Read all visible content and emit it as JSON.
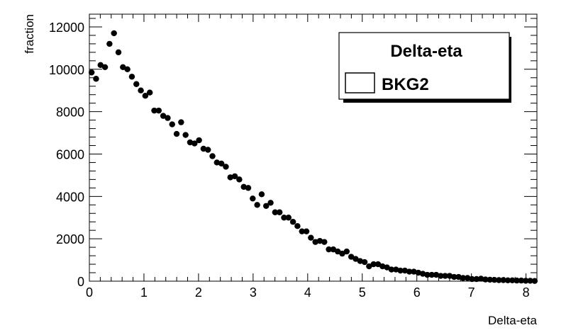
{
  "chart_data": {
    "type": "scatter",
    "style": "points-with-error-bars",
    "xlabel": "Delta-eta",
    "ylabel": "fraction",
    "xlim": [
      0,
      8.2
    ],
    "ylim": [
      0,
      12600
    ],
    "x_ticks": [
      "0",
      "1",
      "2",
      "3",
      "4",
      "5",
      "6",
      "7",
      "8"
    ],
    "y_ticks": [
      "0",
      "2000",
      "4000",
      "6000",
      "8000",
      "10000",
      "12000"
    ],
    "grid": false,
    "legend": {
      "title": "Delta-eta",
      "placement": "top-right",
      "entries": [
        "BKG2"
      ]
    },
    "series": [
      {
        "name": "BKG2",
        "color": "#000000",
        "x": [
          0.041,
          0.123,
          0.205,
          0.287,
          0.369,
          0.451,
          0.533,
          0.615,
          0.697,
          0.779,
          0.861,
          0.943,
          1.025,
          1.107,
          1.189,
          1.271,
          1.353,
          1.435,
          1.517,
          1.599,
          1.681,
          1.763,
          1.845,
          1.927,
          2.009,
          2.091,
          2.173,
          2.255,
          2.337,
          2.419,
          2.501,
          2.583,
          2.665,
          2.747,
          2.829,
          2.911,
          2.993,
          3.075,
          3.157,
          3.239,
          3.321,
          3.403,
          3.485,
          3.567,
          3.649,
          3.731,
          3.813,
          3.895,
          3.977,
          4.059,
          4.141,
          4.223,
          4.305,
          4.387,
          4.469,
          4.551,
          4.633,
          4.715,
          4.797,
          4.879,
          4.961,
          5.043,
          5.125,
          5.207,
          5.289,
          5.371,
          5.453,
          5.535,
          5.617,
          5.699,
          5.781,
          5.863,
          5.945,
          6.027,
          6.109,
          6.191,
          6.273,
          6.355,
          6.437,
          6.519,
          6.601,
          6.683,
          6.765,
          6.847,
          6.929,
          7.011,
          7.093,
          7.175,
          7.257,
          7.339,
          7.421,
          7.503,
          7.585,
          7.667,
          7.749,
          7.831,
          7.913,
          7.995,
          8.077,
          8.159
        ],
        "values": [
          9850,
          9550,
          10200,
          10100,
          11200,
          11700,
          10800,
          10100,
          10000,
          9650,
          9300,
          9000,
          8750,
          8900,
          8050,
          8050,
          7800,
          7700,
          7400,
          6950,
          7500,
          6900,
          6550,
          6500,
          6650,
          6250,
          6200,
          5900,
          5600,
          5550,
          5400,
          4900,
          4950,
          4800,
          4450,
          4400,
          3900,
          3600,
          4100,
          3550,
          3700,
          3250,
          3250,
          3000,
          3000,
          2800,
          2600,
          2350,
          2350,
          2050,
          1850,
          1900,
          1850,
          1500,
          1500,
          1400,
          1300,
          1400,
          1150,
          1050,
          950,
          900,
          700,
          800,
          800,
          700,
          650,
          550,
          550,
          500,
          500,
          450,
          450,
          400,
          350,
          300,
          300,
          300,
          250,
          250,
          250,
          200,
          200,
          150,
          150,
          100,
          100,
          120,
          80,
          70,
          60,
          50,
          50,
          40,
          40,
          30,
          30,
          20,
          20,
          10
        ],
        "errors": [
          100,
          98,
          101,
          100,
          106,
          108,
          104,
          100,
          100,
          98,
          96,
          95,
          94,
          94,
          90,
          90,
          88,
          88,
          86,
          83,
          87,
          83,
          81,
          81,
          82,
          79,
          79,
          77,
          75,
          75,
          73,
          70,
          70,
          69,
          67,
          66,
          62,
          60,
          64,
          60,
          61,
          57,
          57,
          55,
          55,
          53,
          51,
          48,
          48,
          45,
          43,
          44,
          43,
          39,
          39,
          37,
          36,
          37,
          34,
          32,
          31,
          30,
          26,
          28,
          28,
          26,
          25,
          23,
          23,
          22,
          22,
          21,
          21,
          20,
          19,
          17,
          17,
          17,
          16,
          16,
          16,
          14,
          14,
          12,
          12,
          10,
          10,
          11,
          9,
          8,
          8,
          7,
          7,
          6,
          6,
          5,
          5,
          4,
          4,
          3
        ]
      }
    ]
  }
}
